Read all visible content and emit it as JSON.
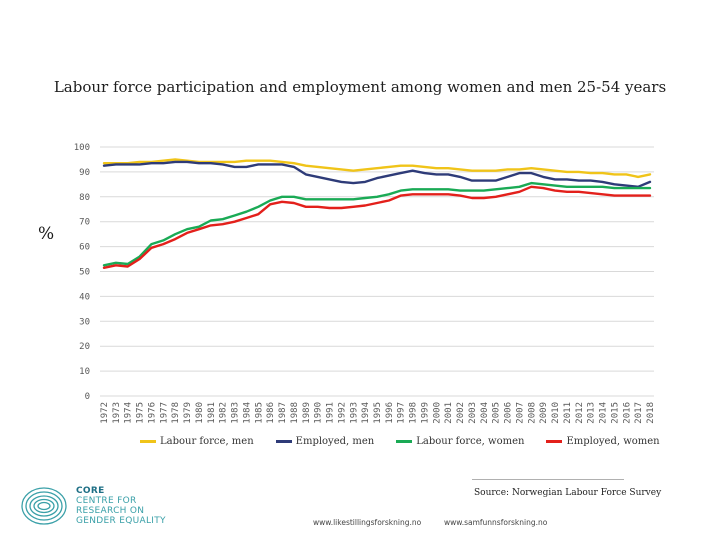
{
  "chart_data": {
    "type": "line",
    "title": "Labour force participation and employment among women and men 25-54 years",
    "ylabel": "%",
    "xlabel": "",
    "ylim": [
      0,
      100
    ],
    "yticks": [
      0,
      10,
      20,
      30,
      40,
      50,
      60,
      70,
      80,
      90,
      100
    ],
    "grid": true,
    "legend": "bottom",
    "x": [
      "1972",
      "1973",
      "1974",
      "1975",
      "1976",
      "1977",
      "1978",
      "1979",
      "1980",
      "1981",
      "1982",
      "1983",
      "1984",
      "1985",
      "1986",
      "1987",
      "1988",
      "1989",
      "1990",
      "1991",
      "1992",
      "1993",
      "1994",
      "1995",
      "1996",
      "1997",
      "1998",
      "1999",
      "2000",
      "2001",
      "2002",
      "2003",
      "2004",
      "2005",
      "2006",
      "2007",
      "2008",
      "2009",
      "2010",
      "2011",
      "2012",
      "2013",
      "2014",
      "2015",
      "2016",
      "2017",
      "2018"
    ],
    "series": [
      {
        "name": "Labour force, men",
        "color": "#f0c419",
        "values": [
          93.5,
          93.5,
          93.5,
          94,
          94,
          94.5,
          95,
          94.5,
          94,
          94,
          94,
          94,
          94.5,
          94.5,
          94.5,
          94,
          93.5,
          92.5,
          92,
          91.5,
          91,
          90.5,
          91,
          91.5,
          92,
          92.5,
          92.5,
          92,
          91.5,
          91.5,
          91,
          90.5,
          90.5,
          90.5,
          91,
          91,
          91.5,
          91,
          90.5,
          90,
          90,
          89.5,
          89.5,
          89,
          89,
          88,
          89
        ]
      },
      {
        "name": "Employed, men",
        "color": "#2e3b78",
        "values": [
          92.5,
          93,
          93,
          93,
          93.5,
          93.5,
          94,
          94,
          93.5,
          93.5,
          93,
          92,
          92,
          93,
          93,
          93,
          92,
          89,
          88,
          87,
          86,
          85.5,
          86,
          87.5,
          88.5,
          89.5,
          90.5,
          89.5,
          89,
          89,
          88,
          86.5,
          86.5,
          86.5,
          88,
          89.5,
          89.5,
          88,
          87,
          87,
          86.5,
          86.5,
          86,
          85,
          84.5,
          84,
          86
        ]
      },
      {
        "name": "Labour force, women",
        "color": "#1aaa55",
        "values": [
          52.5,
          53.5,
          53,
          56,
          61,
          62.5,
          65,
          67,
          68,
          70.5,
          71,
          72.5,
          74,
          76,
          78.5,
          80,
          80,
          79,
          79,
          79,
          79,
          79,
          79.5,
          80,
          81,
          82.5,
          83,
          83,
          83,
          83,
          82.5,
          82.5,
          82.5,
          83,
          83.5,
          84,
          85.5,
          85,
          84.5,
          84,
          84,
          84,
          84,
          83.5,
          83.5,
          83.5,
          83.5
        ]
      },
      {
        "name": "Employed, women",
        "color": "#e3201b",
        "values": [
          51.5,
          52.5,
          52,
          55,
          59.5,
          61,
          63,
          65.5,
          67,
          68.5,
          69,
          70,
          71.5,
          73,
          77,
          78,
          77.5,
          76,
          76,
          75.5,
          75.5,
          76,
          76.5,
          77.5,
          78.5,
          80.5,
          81,
          81,
          81,
          81,
          80.5,
          79.5,
          79.5,
          80,
          81,
          82,
          84,
          83.5,
          82.5,
          82,
          82,
          81.5,
          81,
          80.5,
          80.5,
          80.5,
          80.5
        ]
      }
    ]
  },
  "footer": {
    "source": "Source: Norwegian Labour Force Survey",
    "url1": "www.likestillingsforskning.no",
    "url2": "www.samfunnsforskning.no",
    "logo_lines": [
      "CORE",
      "CENTRE FOR",
      "RESEARCH ON",
      "GENDER EQUALITY"
    ]
  },
  "colors": {
    "grid": "#d9d9d9",
    "axis_text": "#595959",
    "logo": "#3aa0a8"
  }
}
